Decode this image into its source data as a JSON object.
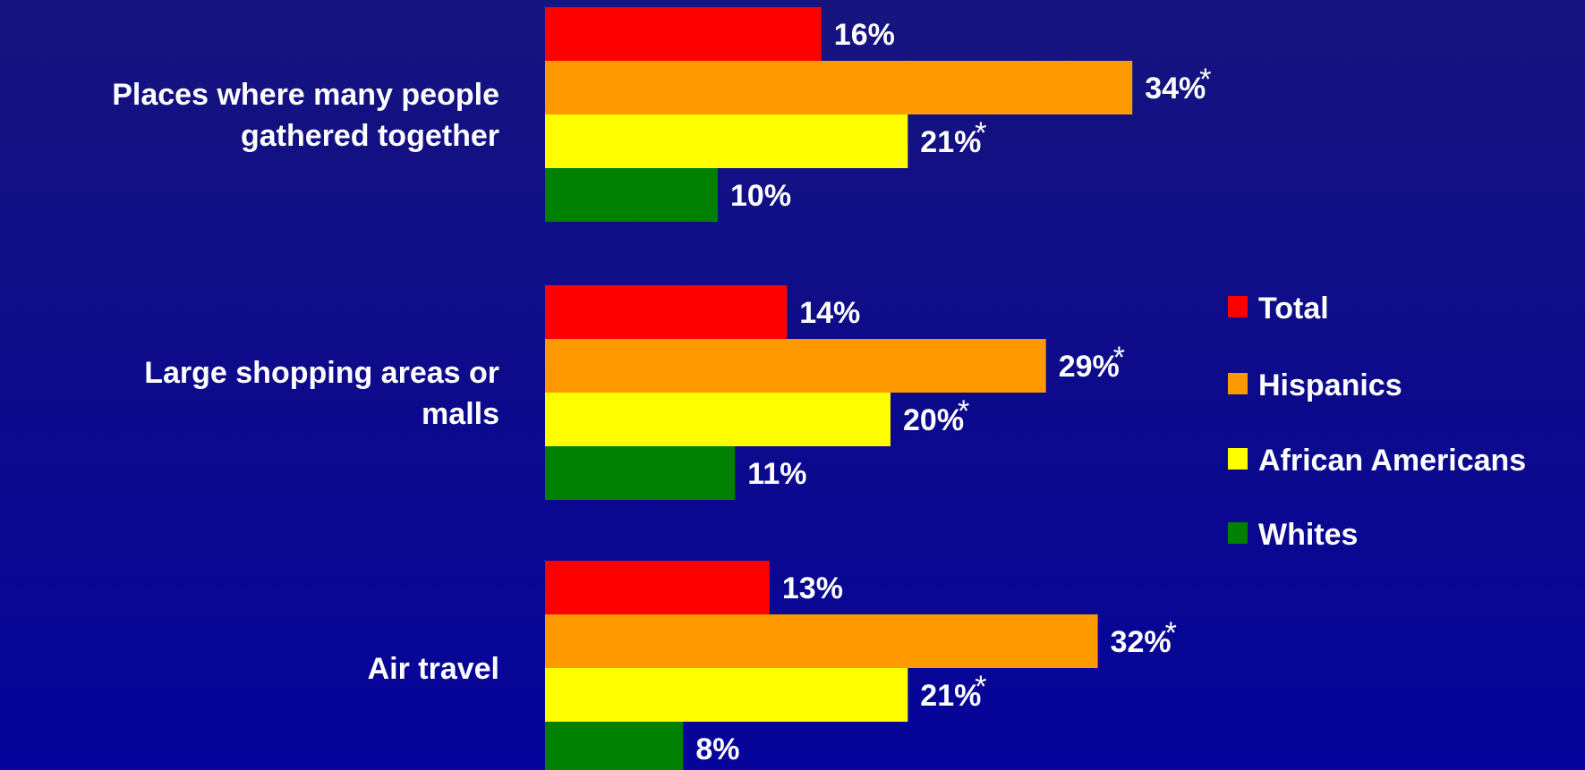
{
  "chart_data": {
    "type": "bar",
    "orientation": "horizontal",
    "categories": [
      "Places where many people gathered together",
      "Large shopping areas or malls",
      "Air travel"
    ],
    "series": [
      {
        "name": "Total",
        "color": "#ff0000",
        "values": [
          16,
          14,
          13
        ],
        "labels": [
          "16%",
          "14%",
          "13%"
        ],
        "significant": [
          false,
          false,
          false
        ]
      },
      {
        "name": "Hispanics",
        "color": "#ff9900",
        "values": [
          34,
          29,
          32
        ],
        "labels": [
          "34%",
          "29%",
          "32%"
        ],
        "significant": [
          true,
          true,
          true
        ]
      },
      {
        "name": "African Americans",
        "color": "#ffff00",
        "values": [
          21,
          20,
          21
        ],
        "labels": [
          "21%",
          "20%",
          "21%"
        ],
        "significant": [
          true,
          true,
          true
        ]
      },
      {
        "name": "Whites",
        "color": "#008000",
        "values": [
          10,
          11,
          8
        ],
        "labels": [
          "10%",
          "11%",
          "8%"
        ],
        "significant": [
          false,
          false,
          false
        ]
      }
    ],
    "significance_marker": "*",
    "xlim": [
      0,
      40
    ],
    "legend_position": "right",
    "grid": false
  }
}
